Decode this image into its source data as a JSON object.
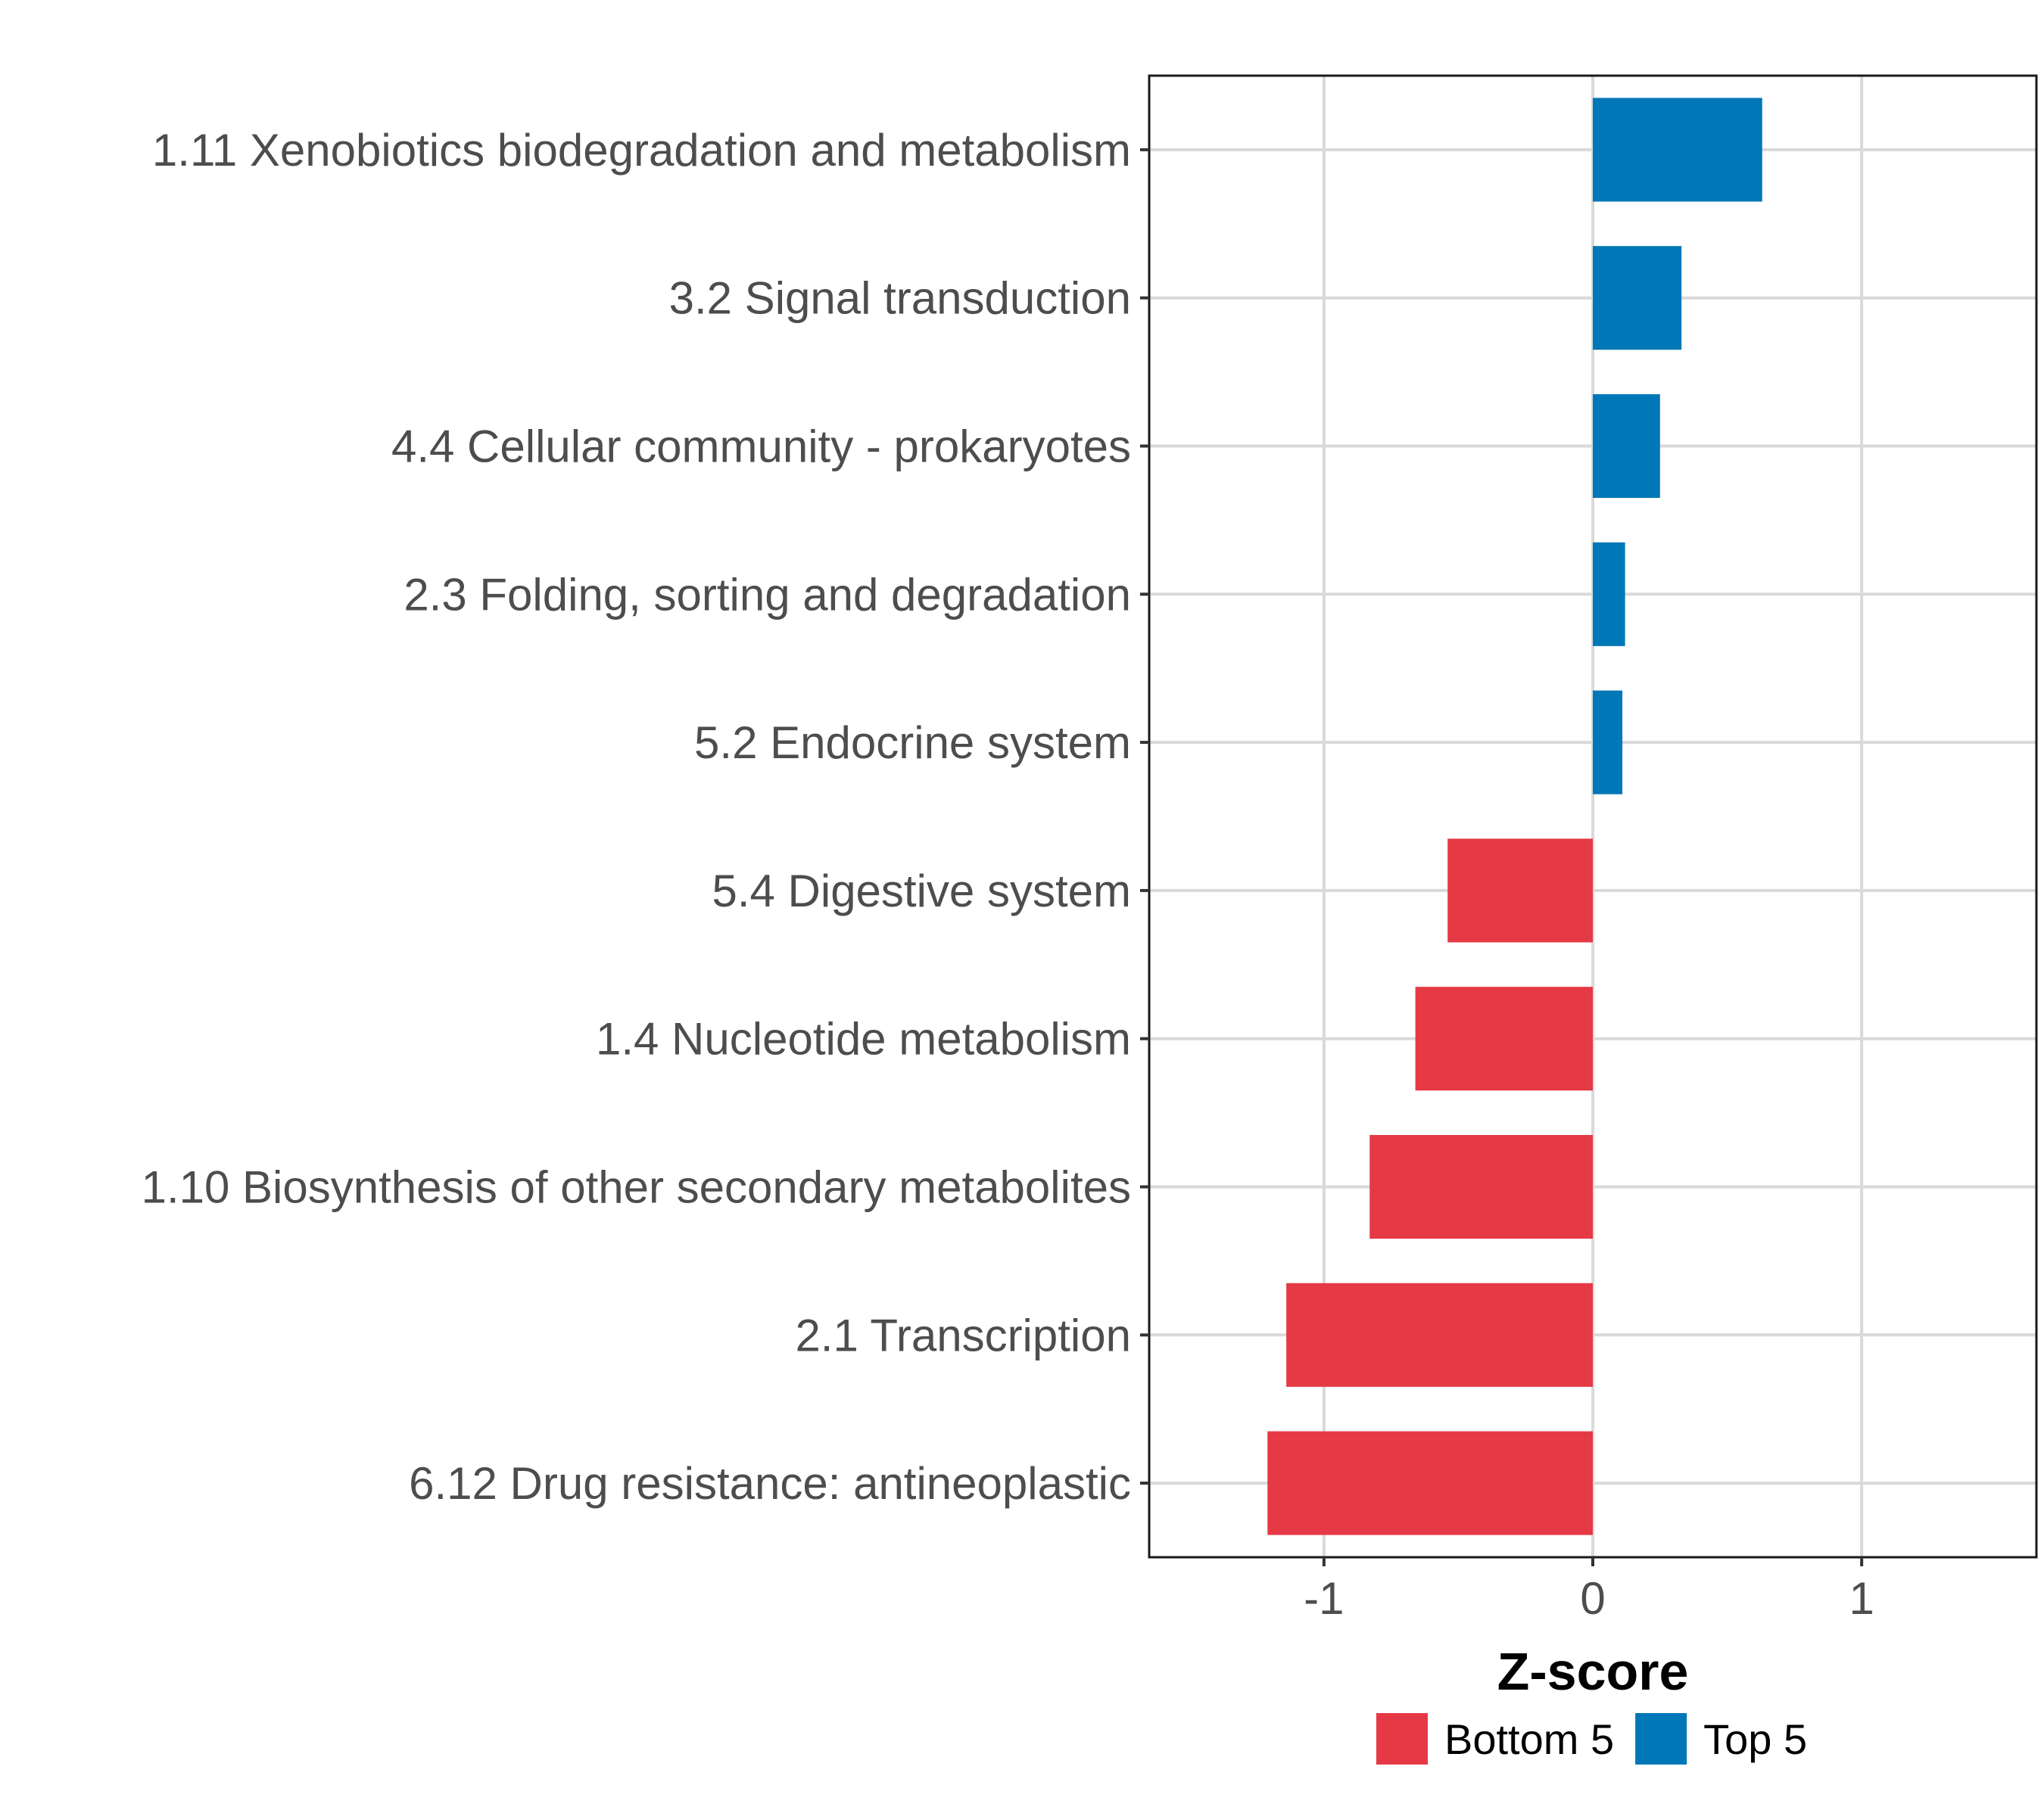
{
  "chart_data": {
    "type": "bar",
    "orientation": "horizontal",
    "title": "",
    "xlabel": "Z-score",
    "ylabel": "",
    "xlim": [
      -1.65,
      1.65
    ],
    "xticks": [
      -1,
      0,
      1
    ],
    "xtick_labels": [
      "-1",
      "0",
      "1"
    ],
    "grid": true,
    "legend_position": "bottom",
    "categories": [
      "1.11 Xenobiotics biodegradation and metabolism",
      "3.2 Signal transduction",
      "4.4 Cellular community - prokaryotes",
      "2.3 Folding, sorting and degradation",
      "5.2 Endocrine system",
      "5.4 Digestive system",
      "1.4 Nucleotide metabolism",
      "1.10 Biosynthesis of other secondary metabolites",
      "2.1 Transcription",
      "6.12 Drug resistance: antineoplastic"
    ],
    "values": [
      0.63,
      0.33,
      0.25,
      0.12,
      0.11,
      -0.54,
      -0.66,
      -0.83,
      -1.14,
      -1.21
    ],
    "groups": [
      "Top 5",
      "Top 5",
      "Top 5",
      "Top 5",
      "Top 5",
      "Bottom 5",
      "Bottom 5",
      "Bottom 5",
      "Bottom 5",
      "Bottom 5"
    ],
    "legend": [
      {
        "name": "Bottom 5",
        "color": "#e63946"
      },
      {
        "name": "Top 5",
        "color": "#0077b6"
      }
    ]
  }
}
